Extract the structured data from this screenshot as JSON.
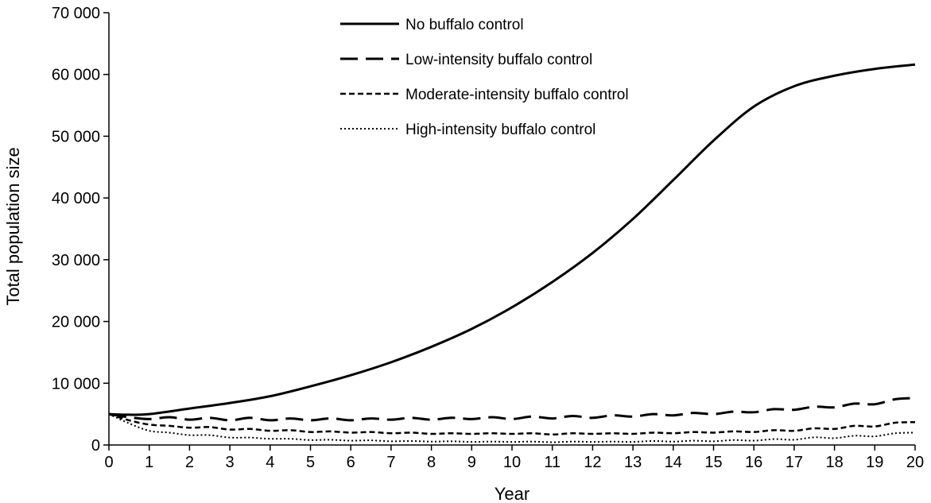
{
  "chart_data": {
    "type": "line",
    "title": "",
    "xlabel": "Year",
    "ylabel": "Total population size",
    "xlim": [
      0,
      20
    ],
    "ylim": [
      0,
      70000
    ],
    "x_ticks": [
      0,
      1,
      2,
      3,
      4,
      5,
      6,
      7,
      8,
      9,
      10,
      11,
      12,
      13,
      14,
      15,
      16,
      17,
      18,
      19,
      20
    ],
    "x_tick_labels": [
      "0",
      "1",
      "2",
      "3",
      "4",
      "5",
      "6",
      "7",
      "8",
      "9",
      "10",
      "11",
      "12",
      "13",
      "14",
      "15",
      "16",
      "17",
      "18",
      "19",
      "20"
    ],
    "y_ticks": [
      0,
      10000,
      20000,
      30000,
      40000,
      50000,
      60000,
      70000
    ],
    "y_tick_labels": [
      "0",
      "10 000",
      "20 000",
      "30 000",
      "40 000",
      "50 000",
      "60 000",
      "70 000"
    ],
    "grid": false,
    "legend_position": "top-center",
    "series": [
      {
        "name": "No buffalo control",
        "style": "solid",
        "x": [
          0,
          0.5,
          1,
          2,
          3,
          4,
          5,
          6,
          7,
          8,
          9,
          10,
          11,
          12,
          13,
          14,
          15,
          16,
          17,
          18,
          19,
          20
        ],
        "y": [
          5000,
          4900,
          5000,
          5900,
          6800,
          7900,
          9500,
          11300,
          13400,
          15900,
          18800,
          22300,
          26400,
          31100,
          36600,
          42900,
          49300,
          54800,
          58100,
          59800,
          60900,
          61600
        ]
      },
      {
        "name": "Low-intensity buffalo control",
        "style": "long-dash",
        "x": [
          0,
          0.5,
          1,
          1.5,
          2,
          2.5,
          3,
          3.5,
          4,
          4.5,
          5,
          5.5,
          6,
          6.5,
          7,
          7.5,
          8,
          8.5,
          9,
          9.5,
          10,
          10.5,
          11,
          11.5,
          12,
          12.5,
          13,
          13.5,
          14,
          14.5,
          15,
          15.5,
          16,
          16.5,
          17,
          17.5,
          18,
          18.5,
          19,
          19.5,
          20
        ],
        "y": [
          5000,
          4500,
          4200,
          4500,
          4100,
          4400,
          4000,
          4400,
          4000,
          4300,
          4000,
          4300,
          4000,
          4300,
          4100,
          4400,
          4100,
          4400,
          4200,
          4500,
          4200,
          4600,
          4300,
          4700,
          4400,
          4800,
          4600,
          5000,
          4800,
          5200,
          5000,
          5400,
          5300,
          5800,
          5700,
          6200,
          6100,
          6700,
          6600,
          7400,
          7600
        ]
      },
      {
        "name": "Moderate-intensity buffalo control",
        "style": "short-dash",
        "x": [
          0,
          0.5,
          1,
          1.5,
          2,
          2.5,
          3,
          3.5,
          4,
          4.5,
          5,
          5.5,
          6,
          6.5,
          7,
          7.5,
          8,
          8.5,
          9,
          9.5,
          10,
          10.5,
          11,
          11.5,
          12,
          12.5,
          13,
          13.5,
          14,
          14.5,
          15,
          15.5,
          16,
          16.5,
          17,
          17.5,
          18,
          18.5,
          19,
          19.5,
          20
        ],
        "y": [
          5000,
          4000,
          3300,
          3100,
          2800,
          2900,
          2500,
          2600,
          2300,
          2400,
          2100,
          2200,
          2000,
          2100,
          1900,
          2000,
          1800,
          1900,
          1800,
          1900,
          1800,
          1900,
          1700,
          1900,
          1800,
          1900,
          1800,
          2000,
          1900,
          2100,
          2000,
          2200,
          2100,
          2400,
          2300,
          2700,
          2600,
          3100,
          3000,
          3600,
          3700
        ]
      },
      {
        "name": "High-intensity buffalo control",
        "style": "dotted",
        "x": [
          0,
          0.5,
          1,
          1.5,
          2,
          2.5,
          3,
          3.5,
          4,
          4.5,
          5,
          5.5,
          6,
          6.5,
          7,
          7.5,
          8,
          8.5,
          9,
          9.5,
          10,
          10.5,
          11,
          11.5,
          12,
          12.5,
          13,
          13.5,
          14,
          14.5,
          15,
          15.5,
          16,
          16.5,
          17,
          17.5,
          18,
          18.5,
          19,
          19.5,
          20
        ],
        "y": [
          5000,
          3500,
          2300,
          2000,
          1600,
          1600,
          1200,
          1200,
          1000,
          1000,
          800,
          850,
          700,
          750,
          600,
          650,
          550,
          600,
          500,
          550,
          500,
          550,
          450,
          550,
          500,
          550,
          500,
          650,
          550,
          700,
          600,
          800,
          700,
          950,
          850,
          1250,
          1100,
          1500,
          1400,
          1900,
          2000
        ]
      }
    ]
  }
}
